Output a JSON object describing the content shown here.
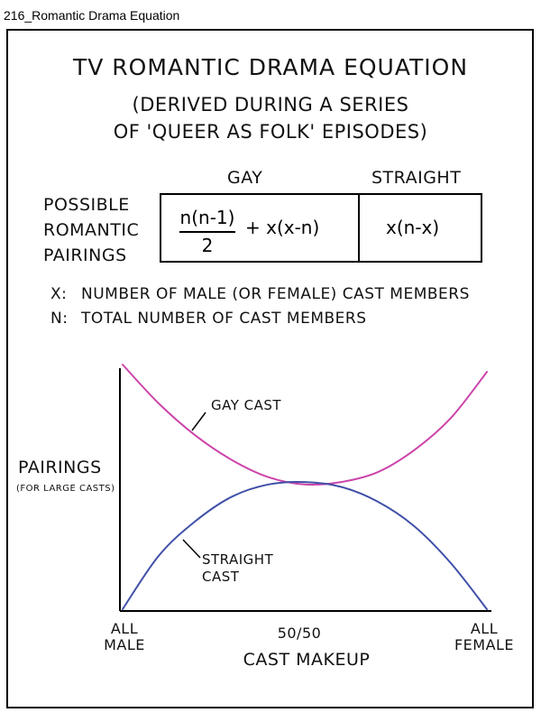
{
  "window": {
    "title": "216_Romantic Drama Equation"
  },
  "comic": {
    "title": "TV Romantic Drama Equation",
    "subtitle_line1": "(Derived during a series",
    "subtitle_line2": "of 'Queer as Folk' episodes)",
    "row_label": [
      "Possible",
      "Romantic",
      "Pairings"
    ],
    "columns": {
      "gay": "Gay",
      "straight": "Straight"
    },
    "formulas": {
      "gay_numerator": "n(n-1)",
      "gay_denominator": "2",
      "gay_rest": "+ x(x-n)",
      "straight": "x(n-x)"
    },
    "legend": [
      {
        "symbol": "x:",
        "text": "Number of male (or female) cast members"
      },
      {
        "symbol": "n:",
        "text": "Total number of cast members"
      }
    ]
  },
  "chart_data": {
    "type": "line",
    "title": "",
    "xlabel": "Cast makeup",
    "ylabel": "Pairings",
    "ylabel_note": "(for large casts)",
    "x_ticks": [
      {
        "label": [
          "All",
          "male"
        ],
        "x": 0
      },
      {
        "label": [
          "50/50"
        ],
        "x": 0.5
      },
      {
        "label": [
          "All",
          "female"
        ],
        "x": 1
      }
    ],
    "xlim": [
      0,
      1
    ],
    "ylim": [
      0,
      1
    ],
    "grid": false,
    "series": [
      {
        "name": "Gay cast",
        "color": "#cc44aa",
        "x": [
          0,
          0.1,
          0.2,
          0.3,
          0.4,
          0.5,
          0.6,
          0.7,
          0.8,
          0.9,
          1.0
        ],
        "y": [
          1.0,
          0.84,
          0.71,
          0.61,
          0.54,
          0.51,
          0.52,
          0.56,
          0.65,
          0.78,
          0.97
        ]
      },
      {
        "name": "Straight cast",
        "color": "#4050a8",
        "x": [
          0,
          0.1,
          0.2,
          0.3,
          0.4,
          0.5,
          0.6,
          0.7,
          0.8,
          0.9,
          1.0
        ],
        "y": [
          0.0,
          0.22,
          0.36,
          0.46,
          0.51,
          0.52,
          0.5,
          0.44,
          0.34,
          0.19,
          0.0
        ]
      }
    ],
    "annotations": [
      {
        "text": "Gay cast",
        "series": "Gay cast"
      },
      {
        "text": [
          "Straight",
          "cast"
        ],
        "series": "Straight cast"
      }
    ]
  }
}
